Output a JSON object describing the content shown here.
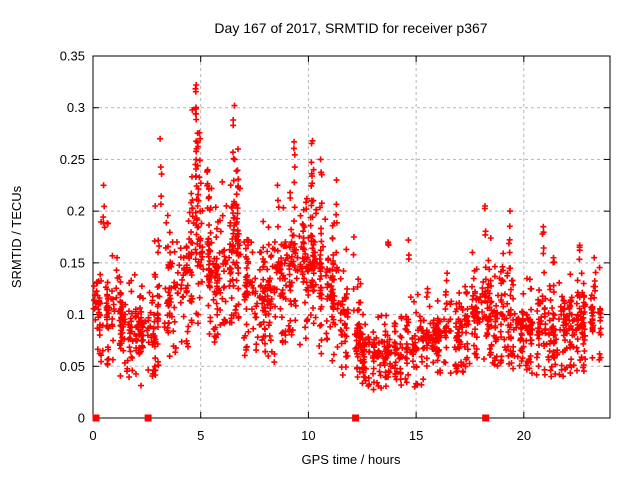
{
  "chart_data": {
    "type": "scatter",
    "title": "Day 167 of 2017, SRMTID for receiver p367",
    "xlabel": "GPS time / hours",
    "ylabel": "SRMTID / TECUs",
    "xlim": [
      0,
      24
    ],
    "ylim": [
      0,
      0.35
    ],
    "xticks": {
      "values": [
        0,
        5,
        10,
        15,
        20
      ],
      "labels": [
        "0",
        "5",
        "10",
        "15",
        "20"
      ]
    },
    "yticks": {
      "values": [
        0,
        0.05,
        0.1,
        0.15,
        0.2,
        0.25,
        0.3,
        0.35
      ],
      "labels": [
        "0",
        "0.05",
        "0.1",
        "0.15",
        "0.2",
        "0.25",
        "0.3",
        "0.35"
      ]
    },
    "grid": true,
    "legend": "none",
    "background_color": "#ffffff",
    "axis_color": "#000000",
    "grid_color": "#b4b4b4",
    "marker": {
      "shape": "plus",
      "color": "#ff0000",
      "size": 7
    },
    "zero_marker": {
      "shape": "filled-square",
      "color": "#ff0000",
      "size": 7
    },
    "zero_marker_x": [
      0.14,
      2.56,
      12.19,
      18.23
    ],
    "seed": 42,
    "density_profile": {
      "description": "Scatter cloud envelope read from the plot, per 0.5 h bin: [t_start, t_end, n_points, y_min, y_core_low, y_core_high, y_max]",
      "bins": [
        [
          0.0,
          0.5,
          40,
          0.05,
          0.07,
          0.15,
          0.2
        ],
        [
          0.5,
          1.0,
          45,
          0.045,
          0.06,
          0.14,
          0.19
        ],
        [
          1.0,
          1.5,
          45,
          0.04,
          0.06,
          0.13,
          0.155
        ],
        [
          1.5,
          2.0,
          40,
          0.035,
          0.05,
          0.12,
          0.14
        ],
        [
          2.0,
          2.5,
          40,
          0.03,
          0.05,
          0.11,
          0.13
        ],
        [
          2.5,
          3.0,
          36,
          0.04,
          0.05,
          0.12,
          0.16
        ],
        [
          3.0,
          3.5,
          36,
          0.05,
          0.06,
          0.16,
          0.21
        ],
        [
          3.5,
          4.0,
          36,
          0.05,
          0.07,
          0.17,
          0.2
        ],
        [
          4.0,
          4.5,
          40,
          0.06,
          0.09,
          0.19,
          0.23
        ],
        [
          4.5,
          5.0,
          48,
          0.08,
          0.12,
          0.26,
          0.3
        ],
        [
          5.0,
          5.5,
          48,
          0.07,
          0.1,
          0.2,
          0.23
        ],
        [
          5.5,
          6.0,
          45,
          0.07,
          0.09,
          0.18,
          0.21
        ],
        [
          6.0,
          6.5,
          45,
          0.08,
          0.1,
          0.2,
          0.24
        ],
        [
          6.5,
          7.0,
          48,
          0.08,
          0.11,
          0.22,
          0.26
        ],
        [
          7.0,
          7.5,
          45,
          0.06,
          0.08,
          0.17,
          0.2
        ],
        [
          7.5,
          8.0,
          45,
          0.06,
          0.08,
          0.16,
          0.19
        ],
        [
          8.0,
          8.5,
          45,
          0.05,
          0.08,
          0.17,
          0.2
        ],
        [
          8.5,
          9.0,
          45,
          0.06,
          0.09,
          0.18,
          0.21
        ],
        [
          9.0,
          9.5,
          48,
          0.07,
          0.1,
          0.2,
          0.24
        ],
        [
          9.5,
          10.0,
          48,
          0.07,
          0.1,
          0.2,
          0.23
        ],
        [
          10.0,
          10.5,
          48,
          0.07,
          0.1,
          0.21,
          0.25
        ],
        [
          10.5,
          11.0,
          48,
          0.06,
          0.09,
          0.19,
          0.23
        ],
        [
          11.0,
          11.5,
          45,
          0.05,
          0.08,
          0.17,
          0.21
        ],
        [
          11.5,
          12.0,
          40,
          0.04,
          0.06,
          0.13,
          0.17
        ],
        [
          12.0,
          12.5,
          40,
          0.035,
          0.05,
          0.11,
          0.14
        ],
        [
          12.5,
          13.0,
          40,
          0.03,
          0.04,
          0.09,
          0.11
        ],
        [
          13.0,
          13.5,
          40,
          0.025,
          0.035,
          0.08,
          0.1
        ],
        [
          13.5,
          14.0,
          40,
          0.03,
          0.04,
          0.09,
          0.11
        ],
        [
          14.0,
          14.5,
          40,
          0.03,
          0.045,
          0.09,
          0.11
        ],
        [
          14.5,
          15.0,
          40,
          0.03,
          0.045,
          0.095,
          0.12
        ],
        [
          15.0,
          15.5,
          40,
          0.03,
          0.05,
          0.1,
          0.12
        ],
        [
          15.5,
          16.0,
          40,
          0.035,
          0.05,
          0.1,
          0.125
        ],
        [
          16.0,
          16.5,
          40,
          0.04,
          0.055,
          0.11,
          0.13
        ],
        [
          16.5,
          17.0,
          40,
          0.04,
          0.055,
          0.11,
          0.13
        ],
        [
          17.0,
          17.5,
          40,
          0.04,
          0.06,
          0.12,
          0.14
        ],
        [
          17.5,
          18.0,
          42,
          0.05,
          0.07,
          0.13,
          0.16
        ],
        [
          18.0,
          18.5,
          45,
          0.05,
          0.07,
          0.15,
          0.18
        ],
        [
          18.5,
          19.0,
          42,
          0.05,
          0.06,
          0.13,
          0.15
        ],
        [
          19.0,
          19.5,
          42,
          0.05,
          0.07,
          0.14,
          0.17
        ],
        [
          19.5,
          20.0,
          40,
          0.04,
          0.06,
          0.12,
          0.14
        ],
        [
          20.0,
          20.5,
          40,
          0.04,
          0.06,
          0.12,
          0.14
        ],
        [
          20.5,
          21.0,
          42,
          0.04,
          0.06,
          0.13,
          0.15
        ],
        [
          21.0,
          21.5,
          42,
          0.04,
          0.06,
          0.12,
          0.14
        ],
        [
          21.5,
          22.0,
          42,
          0.04,
          0.055,
          0.12,
          0.14
        ],
        [
          22.0,
          22.5,
          42,
          0.04,
          0.06,
          0.125,
          0.15
        ],
        [
          22.5,
          23.0,
          45,
          0.04,
          0.06,
          0.13,
          0.155
        ],
        [
          23.0,
          23.6,
          40,
          0.05,
          0.07,
          0.125,
          0.15
        ]
      ],
      "spikes_description": "Narrow vertical columns of points (satellite-arc spikes): [t_center, y_low, y_top, n_points]",
      "spikes": [
        [
          4.78,
          0.15,
          0.322,
          22
        ],
        [
          4.95,
          0.14,
          0.27,
          10
        ],
        [
          6.52,
          0.15,
          0.302,
          14
        ],
        [
          6.7,
          0.14,
          0.26,
          8
        ],
        [
          9.35,
          0.15,
          0.267,
          8
        ],
        [
          10.15,
          0.14,
          0.268,
          10
        ],
        [
          10.6,
          0.13,
          0.25,
          8
        ],
        [
          3.15,
          0.19,
          0.27,
          5
        ],
        [
          0.5,
          0.14,
          0.225,
          5
        ],
        [
          2.9,
          0.13,
          0.205,
          4
        ],
        [
          1.1,
          0.1,
          0.155,
          5
        ],
        [
          5.3,
          0.13,
          0.24,
          8
        ],
        [
          7.9,
          0.12,
          0.19,
          6
        ],
        [
          8.6,
          0.13,
          0.225,
          6
        ],
        [
          11.3,
          0.13,
          0.23,
          6
        ],
        [
          12.1,
          0.1,
          0.175,
          4
        ],
        [
          13.7,
          0.145,
          0.17,
          3
        ],
        [
          14.65,
          0.15,
          0.172,
          3
        ],
        [
          15.5,
          0.08,
          0.125,
          4
        ],
        [
          16.4,
          0.09,
          0.14,
          4
        ],
        [
          17.6,
          0.1,
          0.16,
          5
        ],
        [
          18.2,
          0.1,
          0.205,
          8
        ],
        [
          19.35,
          0.1,
          0.2,
          7
        ],
        [
          20.9,
          0.1,
          0.185,
          6
        ],
        [
          21.4,
          0.1,
          0.155,
          4
        ],
        [
          22.6,
          0.1,
          0.167,
          5
        ],
        [
          23.3,
          0.1,
          0.155,
          5
        ]
      ]
    }
  }
}
